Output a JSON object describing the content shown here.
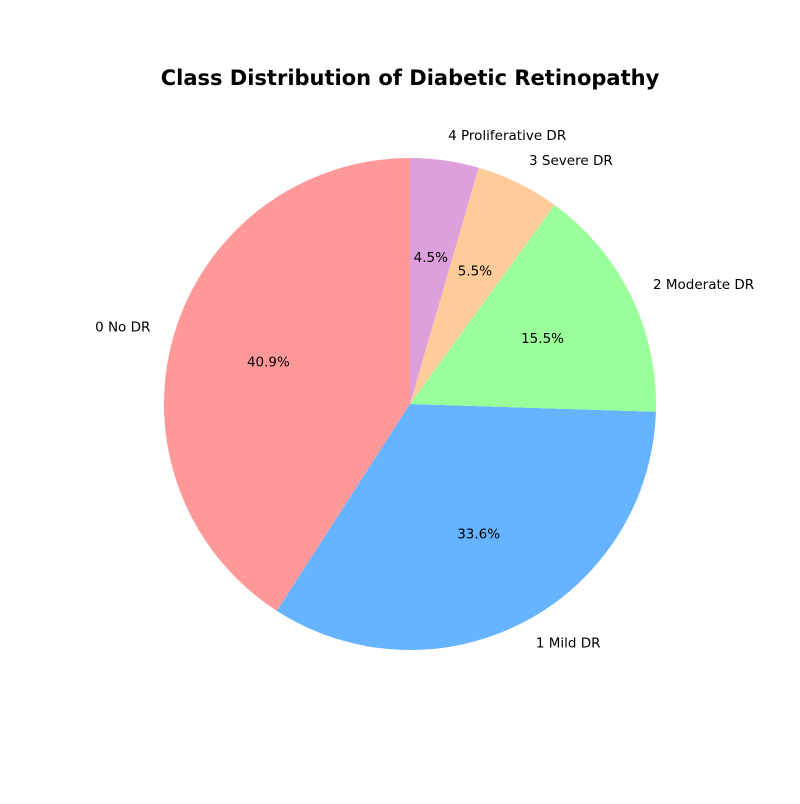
{
  "chart_data": {
    "type": "pie",
    "title": "Class Distribution of Diabetic Retinopathy",
    "start_angle_deg": 90,
    "direction": "counterclockwise",
    "slices": [
      {
        "label": "0 No DR",
        "value": 40.9,
        "pct_label": "40.9%",
        "color": "#ff9999"
      },
      {
        "label": "1 Mild DR",
        "value": 33.6,
        "pct_label": "33.6%",
        "color": "#66b3ff"
      },
      {
        "label": "2 Moderate DR",
        "value": 15.5,
        "pct_label": "15.5%",
        "color": "#99ff99"
      },
      {
        "label": "3 Severe DR",
        "value": 5.5,
        "pct_label": "5.5%",
        "color": "#ffcc99"
      },
      {
        "label": "4 Proliferative DR",
        "value": 4.5,
        "pct_label": "4.5%",
        "color": "#dda0dd"
      }
    ]
  }
}
